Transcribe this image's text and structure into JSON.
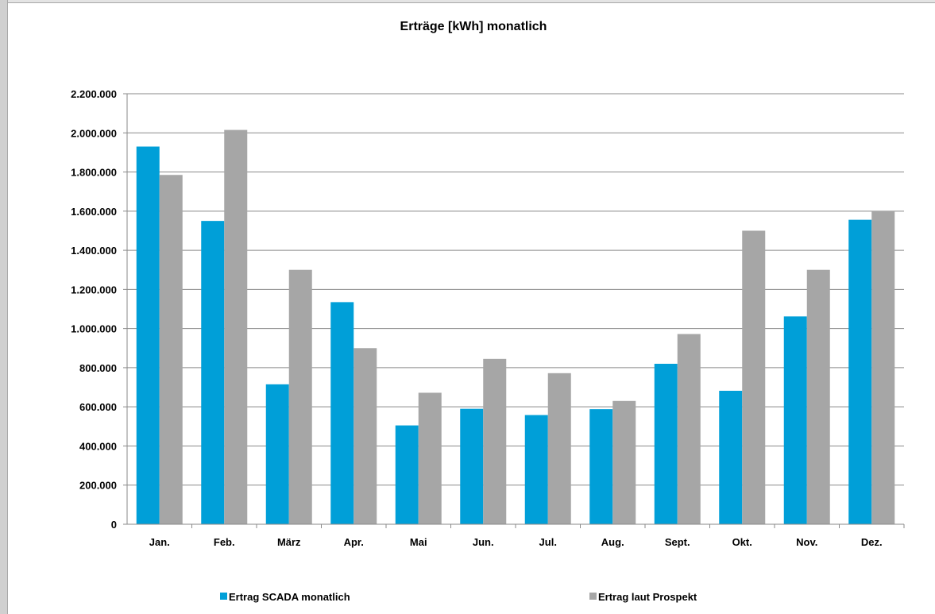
{
  "colors": {
    "series1": "#009fd8",
    "series2": "#a6a6a6",
    "gridline": "#8a8a8a",
    "axis": "#8a8a8a"
  },
  "chart_data": {
    "type": "bar",
    "title": "Erträge [kWh] monatlich",
    "xlabel": "",
    "ylabel": "",
    "ylim": [
      0,
      2200000
    ],
    "yticks": [
      0,
      200000,
      400000,
      600000,
      800000,
      1000000,
      1200000,
      1400000,
      1600000,
      1800000,
      2000000,
      2200000
    ],
    "ytick_labels": [
      "0",
      "200.000",
      "400.000",
      "600.000",
      "800.000",
      "1.000.000",
      "1.200.000",
      "1.400.000",
      "1.600.000",
      "1.800.000",
      "2.000.000",
      "2.200.000"
    ],
    "categories": [
      "Jan.",
      "Feb.",
      "März",
      "Apr.",
      "Mai",
      "Jun.",
      "Jul.",
      "Aug.",
      "Sept.",
      "Okt.",
      "Nov.",
      "Dez."
    ],
    "series": [
      {
        "name": "Ertrag SCADA monatlich",
        "values": [
          1930000,
          1550000,
          715000,
          1135000,
          505000,
          590000,
          558000,
          588000,
          820000,
          682000,
          1062000,
          1556000
        ]
      },
      {
        "name": "Ertrag laut Prospekt",
        "values": [
          1785000,
          2015000,
          1300000,
          900000,
          672000,
          845000,
          772000,
          630000,
          972000,
          1500000,
          1300000,
          1600000
        ]
      }
    ],
    "grid": true,
    "legend_position": "bottom"
  }
}
